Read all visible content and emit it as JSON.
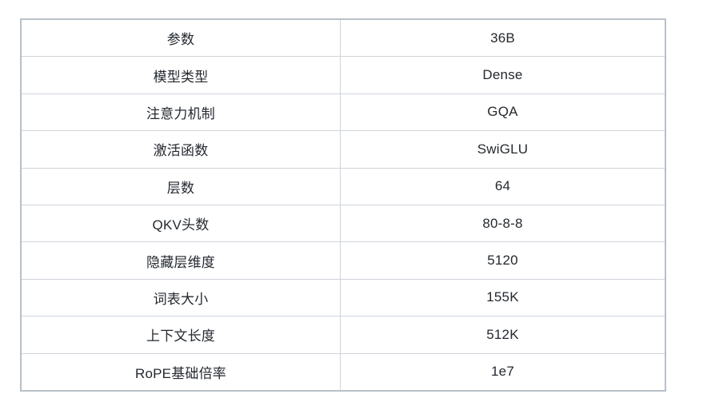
{
  "table": {
    "rows": [
      {
        "label": "参数",
        "value": "36B"
      },
      {
        "label": "模型类型",
        "value": "Dense"
      },
      {
        "label": "注意力机制",
        "value": "GQA"
      },
      {
        "label": "激活函数",
        "value": "SwiGLU"
      },
      {
        "label": "层数",
        "value": "64"
      },
      {
        "label": "QKV头数",
        "value": "80-8-8"
      },
      {
        "label": "隐藏层维度",
        "value": "5120"
      },
      {
        "label": "词表大小",
        "value": "155K"
      },
      {
        "label": "上下文长度",
        "value": "512K"
      },
      {
        "label": "RoPE基础倍率",
        "value": "1e7"
      }
    ]
  },
  "colors": {
    "background": "#ffffff",
    "border_outer": "#b8c0c9",
    "border_inner": "#cfd5dc",
    "text": "#24292f"
  }
}
